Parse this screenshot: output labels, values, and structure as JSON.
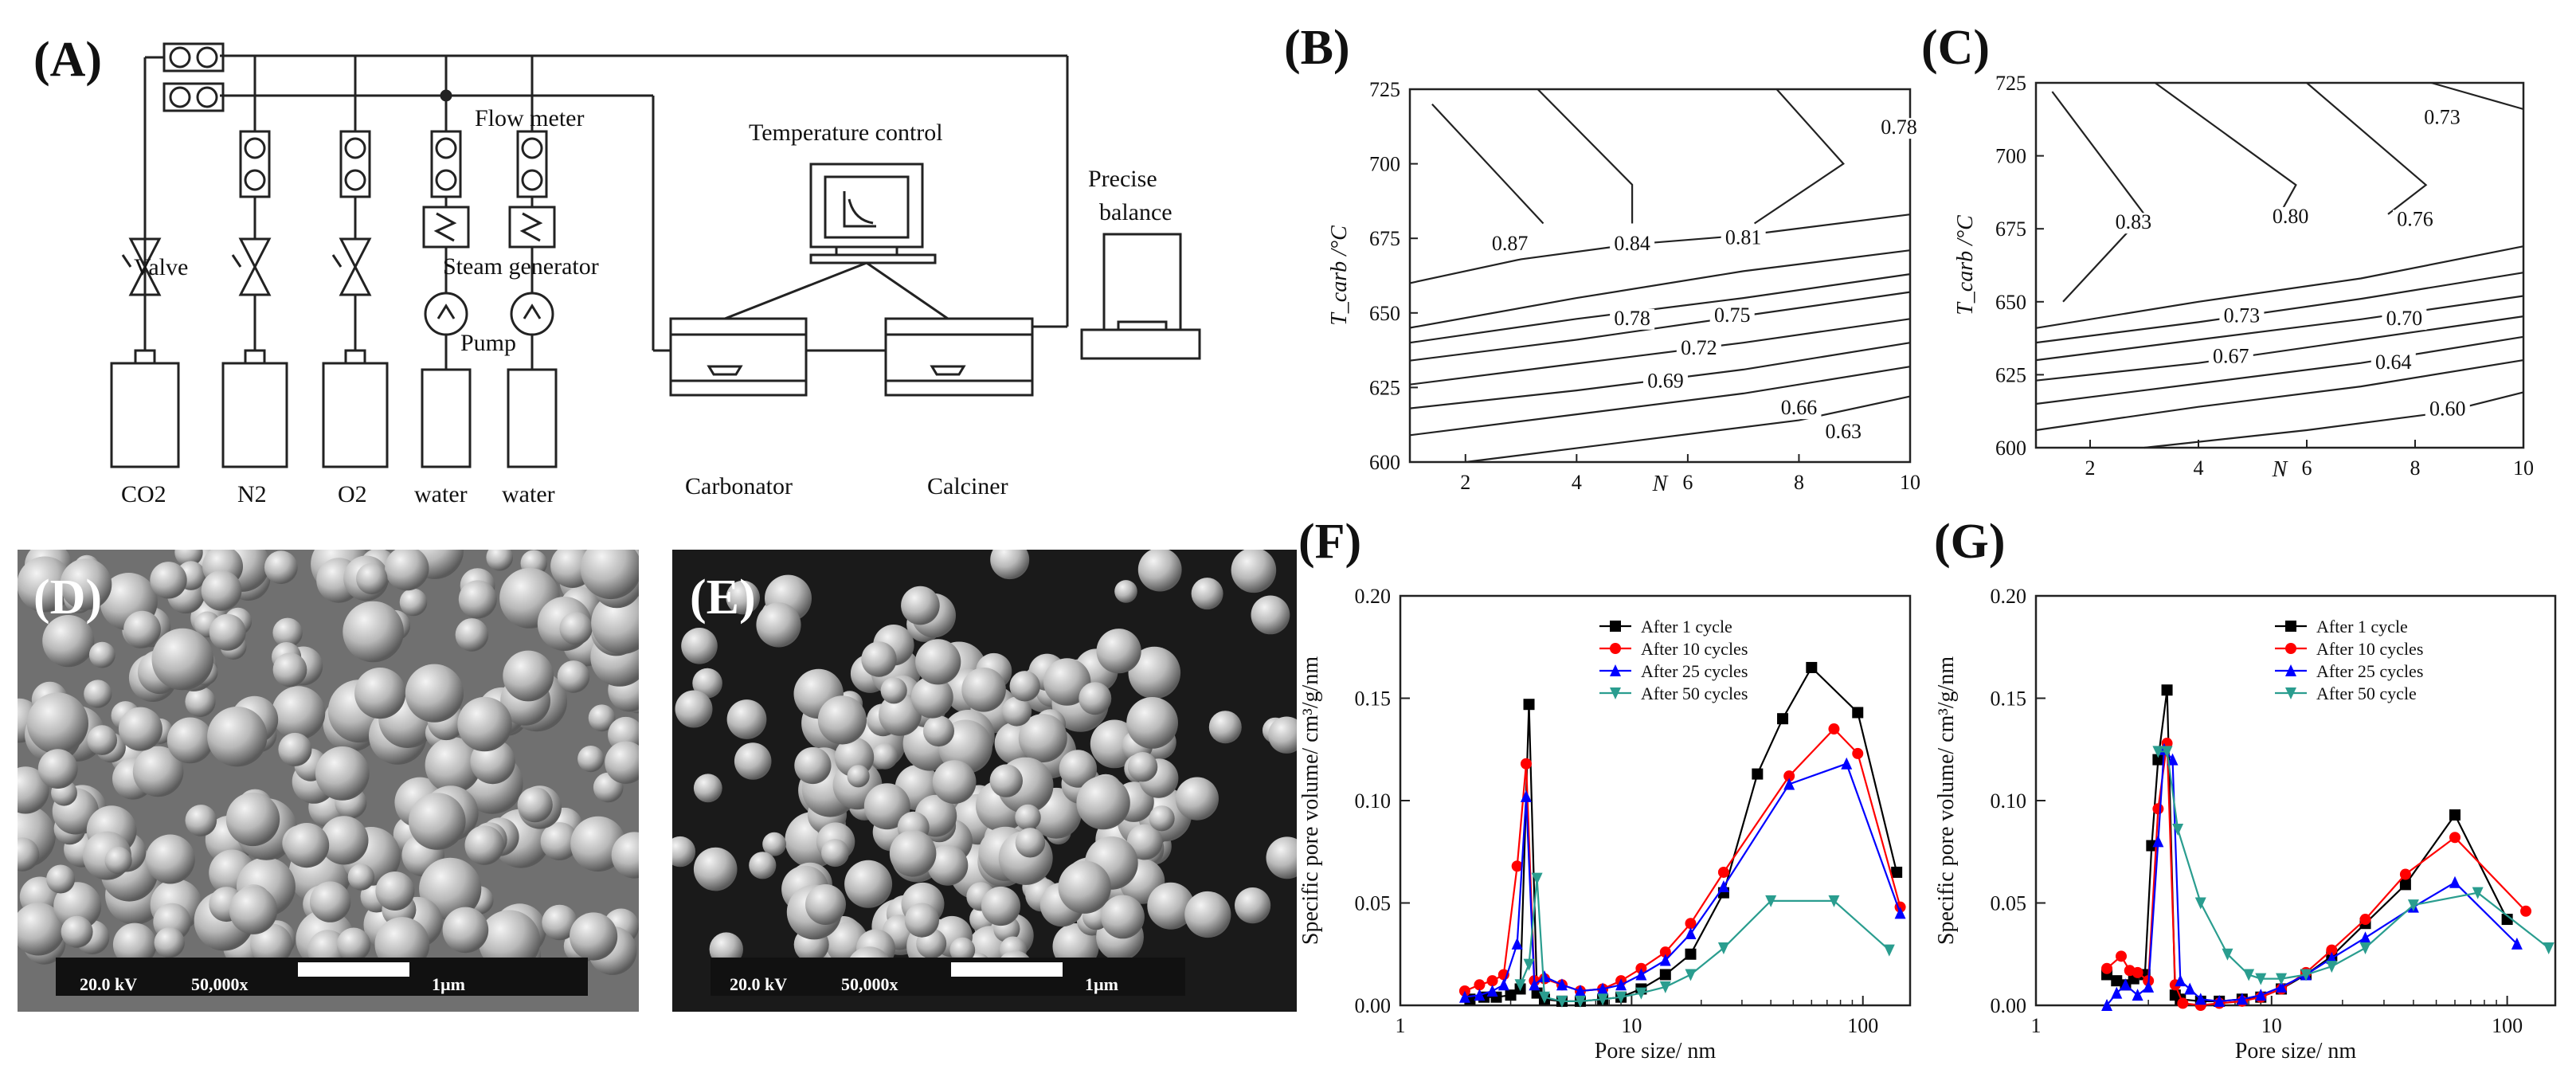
{
  "panels": {
    "A": {
      "label": "(A)",
      "flow_meter": "Flow meter",
      "valve": "Valve",
      "steam_generator": "Steam generator",
      "pump": "Pump",
      "temperature_control": "Temperature control",
      "precise_balance": [
        "Precise",
        "balance"
      ],
      "carbonator": "Carbonator",
      "calciner": "Calciner",
      "sources": [
        "CO2",
        "N2",
        "O2",
        "water",
        "water"
      ]
    },
    "B": {
      "label": "(B)"
    },
    "C": {
      "label": "(C)"
    },
    "D": {
      "label": "(D)",
      "scale_kv": "20.0 kV",
      "scale_mag": "50,000x",
      "scale_len": "1µm"
    },
    "E": {
      "label": "(E)",
      "scale_kv": "20.0 kV",
      "scale_mag": "50,000x",
      "scale_len": "1µm"
    },
    "F": {
      "label": "(F)"
    },
    "G": {
      "label": "(G)"
    }
  },
  "colors": {
    "s1": "#000000",
    "s10": "#ff0000",
    "s25": "#0000ff",
    "s50": "#2a9d8f"
  },
  "chart_data": [
    {
      "id": "B",
      "type": "contour",
      "xlabel": "N",
      "ylabel": "T_carb /°C",
      "xlim": [
        1,
        10
      ],
      "ylim": [
        600,
        725
      ],
      "xticks": [
        2,
        4,
        6,
        8,
        10
      ],
      "yticks": [
        600,
        625,
        650,
        675,
        700,
        725
      ],
      "contour_labels": [
        {
          "text": "0.87",
          "x": 2.8,
          "y": 671
        },
        {
          "text": "0.84",
          "x": 5.0,
          "y": 671
        },
        {
          "text": "0.81",
          "x": 7.0,
          "y": 673
        },
        {
          "text": "0.78",
          "x": 9.8,
          "y": 710
        },
        {
          "text": "0.78",
          "x": 5.0,
          "y": 646
        },
        {
          "text": "0.75",
          "x": 6.8,
          "y": 647
        },
        {
          "text": "0.72",
          "x": 6.2,
          "y": 636
        },
        {
          "text": "0.69",
          "x": 5.6,
          "y": 625
        },
        {
          "text": "0.66",
          "x": 8.0,
          "y": 616
        },
        {
          "text": "0.63",
          "x": 8.8,
          "y": 608
        }
      ],
      "contours": [
        [
          [
            1.4,
            720
          ],
          [
            3.4,
            680
          ]
        ],
        [
          [
            3.3,
            725
          ],
          [
            5.0,
            693
          ],
          [
            5.0,
            680
          ]
        ],
        [
          [
            7.6,
            725
          ],
          [
            8.8,
            700
          ],
          [
            7.2,
            680
          ]
        ],
        [
          [
            1,
            660
          ],
          [
            3,
            668
          ],
          [
            5,
            673
          ],
          [
            7,
            676
          ],
          [
            10,
            683
          ]
        ],
        [
          [
            1,
            645
          ],
          [
            4,
            655
          ],
          [
            7,
            664
          ],
          [
            10,
            671
          ]
        ],
        [
          [
            1,
            640
          ],
          [
            4,
            648
          ],
          [
            7,
            655
          ],
          [
            10,
            663
          ]
        ],
        [
          [
            1,
            634
          ],
          [
            4,
            641
          ],
          [
            7,
            649
          ],
          [
            10,
            657
          ]
        ],
        [
          [
            1,
            626
          ],
          [
            4,
            633
          ],
          [
            7,
            640
          ],
          [
            10,
            648
          ]
        ],
        [
          [
            1,
            618
          ],
          [
            4,
            624
          ],
          [
            7,
            631
          ],
          [
            10,
            640
          ]
        ],
        [
          [
            1,
            609
          ],
          [
            4,
            616
          ],
          [
            7,
            623
          ],
          [
            10,
            632
          ]
        ],
        [
          [
            2,
            600
          ],
          [
            5,
            607
          ],
          [
            8,
            614
          ],
          [
            10,
            622
          ]
        ]
      ]
    },
    {
      "id": "C",
      "type": "contour",
      "xlabel": "N",
      "ylabel": "T_carb /°C",
      "xlim": [
        1,
        10
      ],
      "ylim": [
        600,
        725
      ],
      "xticks": [
        2,
        4,
        6,
        8,
        10
      ],
      "yticks": [
        600,
        625,
        650,
        675,
        700,
        725
      ],
      "contour_labels": [
        {
          "text": "0.83",
          "x": 2.8,
          "y": 675
        },
        {
          "text": "0.80",
          "x": 5.7,
          "y": 677
        },
        {
          "text": "0.76",
          "x": 8.0,
          "y": 676
        },
        {
          "text": "0.73",
          "x": 8.5,
          "y": 711
        },
        {
          "text": "0.73",
          "x": 4.8,
          "y": 643
        },
        {
          "text": "0.70",
          "x": 7.8,
          "y": 642
        },
        {
          "text": "0.67",
          "x": 4.6,
          "y": 629
        },
        {
          "text": "0.64",
          "x": 7.6,
          "y": 627
        },
        {
          "text": "0.60",
          "x": 8.6,
          "y": 611
        }
      ],
      "contours": [
        [
          [
            1.3,
            722
          ],
          [
            3.0,
            680
          ],
          [
            1.5,
            650
          ]
        ],
        [
          [
            3.2,
            725
          ],
          [
            5.8,
            690
          ],
          [
            5.5,
            680
          ]
        ],
        [
          [
            6.0,
            725
          ],
          [
            8.2,
            690
          ],
          [
            7.5,
            680
          ]
        ],
        [
          [
            8.3,
            725
          ],
          [
            10,
            716
          ]
        ],
        [
          [
            1,
            641
          ],
          [
            4,
            650
          ],
          [
            7,
            658
          ],
          [
            10,
            669
          ]
        ],
        [
          [
            1,
            636
          ],
          [
            4,
            643
          ],
          [
            7,
            651
          ],
          [
            10,
            660
          ]
        ],
        [
          [
            1,
            630
          ],
          [
            4,
            637
          ],
          [
            7,
            644
          ],
          [
            10,
            652
          ]
        ],
        [
          [
            1,
            623
          ],
          [
            4,
            629
          ],
          [
            7,
            637
          ],
          [
            10,
            645
          ]
        ],
        [
          [
            1,
            615
          ],
          [
            4,
            622
          ],
          [
            7,
            629
          ],
          [
            10,
            638
          ]
        ],
        [
          [
            1,
            606
          ],
          [
            4,
            614
          ],
          [
            7,
            621
          ],
          [
            10,
            630
          ]
        ],
        [
          [
            3,
            600
          ],
          [
            6,
            606
          ],
          [
            8.5,
            612
          ],
          [
            10,
            619
          ]
        ]
      ]
    },
    {
      "id": "F",
      "type": "line",
      "xscale": "log",
      "xlabel": "Pore size/ nm",
      "ylabel": "Specific pore volume/ cm³/g/nm",
      "xlim": [
        1,
        160
      ],
      "ylim": [
        0,
        0.2
      ],
      "xticks": [
        1,
        10,
        100
      ],
      "yticks": [
        0.0,
        0.05,
        0.1,
        0.15,
        0.2
      ],
      "ytick_labels": [
        "0.00",
        "0.05",
        "0.10",
        "0.15",
        "0.20"
      ],
      "legend_position": "top-right",
      "series": [
        {
          "name": "After 1 cycle",
          "color": "#000000",
          "marker": "square",
          "x": [
            2.0,
            2.3,
            2.6,
            3.0,
            3.3,
            3.6,
            3.9,
            4.2,
            5.0,
            6.0,
            7.5,
            9.0,
            11,
            14,
            18,
            25,
            35,
            45,
            60,
            95,
            140
          ],
          "y": [
            0.003,
            0.004,
            0.004,
            0.005,
            0.008,
            0.147,
            0.006,
            0.003,
            0.002,
            0.002,
            0.003,
            0.004,
            0.008,
            0.015,
            0.025,
            0.055,
            0.113,
            0.14,
            0.165,
            0.143,
            0.065
          ]
        },
        {
          "name": "After 10 cycles",
          "color": "#ff0000",
          "marker": "circle",
          "x": [
            1.9,
            2.2,
            2.5,
            2.8,
            3.2,
            3.5,
            3.8,
            4.2,
            5.0,
            6.0,
            7.5,
            9.0,
            11,
            14,
            18,
            25,
            48,
            75,
            95,
            145
          ],
          "y": [
            0.007,
            0.01,
            0.012,
            0.015,
            0.068,
            0.118,
            0.012,
            0.013,
            0.01,
            0.007,
            0.008,
            0.012,
            0.018,
            0.026,
            0.04,
            0.065,
            0.112,
            0.135,
            0.123,
            0.048
          ]
        },
        {
          "name": "After 25 cycles",
          "color": "#0000ff",
          "marker": "triangle-up",
          "x": [
            1.9,
            2.2,
            2.5,
            2.8,
            3.2,
            3.5,
            3.8,
            4.2,
            5.0,
            6.0,
            7.5,
            9.0,
            11,
            14,
            18,
            25,
            48,
            85,
            145
          ],
          "y": [
            0.004,
            0.005,
            0.007,
            0.01,
            0.03,
            0.102,
            0.01,
            0.014,
            0.01,
            0.007,
            0.008,
            0.01,
            0.015,
            0.022,
            0.035,
            0.058,
            0.108,
            0.118,
            0.045
          ]
        },
        {
          "name": "After 50 cycles",
          "color": "#2a9d8f",
          "marker": "triangle-down",
          "x": [
            3.3,
            3.6,
            3.9,
            4.2,
            5.0,
            6.0,
            7.5,
            9.0,
            11,
            14,
            18,
            25,
            40,
            75,
            130
          ],
          "y": [
            0.01,
            0.02,
            0.062,
            0.004,
            0.002,
            0.002,
            0.003,
            0.004,
            0.006,
            0.009,
            0.015,
            0.028,
            0.051,
            0.051,
            0.027
          ]
        }
      ]
    },
    {
      "id": "G",
      "type": "line",
      "xscale": "log",
      "xlabel": "Pore size/ nm",
      "ylabel": "Specific pore volume/ cm³/g/nm",
      "xlim": [
        1,
        160
      ],
      "ylim": [
        0,
        0.2
      ],
      "xticks": [
        1,
        10,
        100
      ],
      "yticks": [
        0.0,
        0.05,
        0.1,
        0.15,
        0.2
      ],
      "ytick_labels": [
        "0.00",
        "0.05",
        "0.10",
        "0.15",
        "0.20"
      ],
      "legend_position": "top-right",
      "series": [
        {
          "name": "After 1 cycle",
          "color": "#000000",
          "marker": "square",
          "x": [
            2.0,
            2.2,
            2.4,
            2.6,
            2.9,
            3.1,
            3.3,
            3.6,
            3.9,
            4.1,
            5.0,
            6.0,
            7.5,
            9.0,
            11,
            14,
            18,
            25,
            37,
            60,
            100
          ],
          "y": [
            0.015,
            0.012,
            0.01,
            0.013,
            0.015,
            0.078,
            0.12,
            0.154,
            0.005,
            0.003,
            0.002,
            0.002,
            0.003,
            0.004,
            0.008,
            0.015,
            0.024,
            0.04,
            0.059,
            0.093,
            0.042
          ]
        },
        {
          "name": "After 10 cycles",
          "color": "#ff0000",
          "marker": "circle",
          "x": [
            2.0,
            2.3,
            2.5,
            2.7,
            3.0,
            3.3,
            3.6,
            3.9,
            4.2,
            5.0,
            6.0,
            7.5,
            9.0,
            11,
            14,
            18,
            25,
            37,
            60,
            120
          ],
          "y": [
            0.018,
            0.024,
            0.017,
            0.016,
            0.012,
            0.096,
            0.128,
            0.01,
            0.001,
            0.0,
            0.001,
            0.002,
            0.004,
            0.008,
            0.016,
            0.027,
            0.042,
            0.064,
            0.082,
            0.046
          ]
        },
        {
          "name": "After 25 cycles",
          "color": "#0000ff",
          "marker": "triangle-up",
          "x": [
            2.0,
            2.2,
            2.4,
            2.7,
            3.0,
            3.3,
            3.5,
            3.8,
            4.1,
            4.5,
            5.0,
            6.0,
            7.5,
            9.0,
            11,
            14,
            18,
            25,
            40,
            60,
            110
          ],
          "y": [
            0.0,
            0.006,
            0.01,
            0.005,
            0.009,
            0.08,
            0.125,
            0.12,
            0.012,
            0.008,
            0.003,
            0.002,
            0.003,
            0.005,
            0.009,
            0.015,
            0.023,
            0.033,
            0.048,
            0.06,
            0.03
          ]
        },
        {
          "name": "After 50 cycle",
          "color": "#2a9d8f",
          "marker": "triangle-down",
          "x": [
            3.3,
            3.6,
            4.0,
            5.0,
            6.5,
            8.0,
            9.0,
            11,
            14,
            18,
            25,
            40,
            75,
            150
          ],
          "y": [
            0.124,
            0.124,
            0.086,
            0.05,
            0.025,
            0.015,
            0.013,
            0.013,
            0.015,
            0.019,
            0.028,
            0.049,
            0.055,
            0.028
          ]
        }
      ]
    }
  ]
}
